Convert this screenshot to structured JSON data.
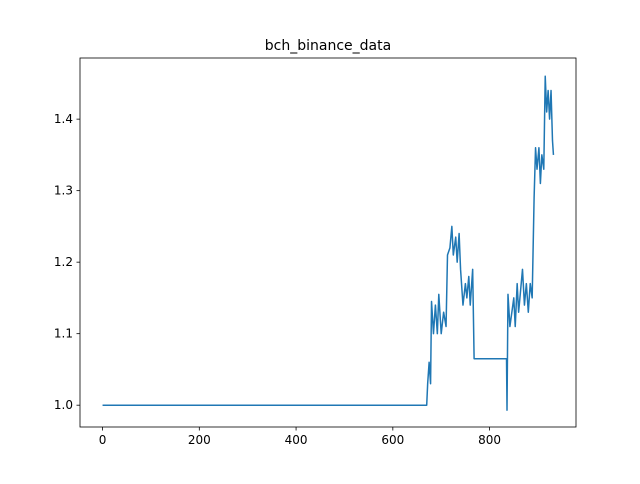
{
  "chart_data": {
    "type": "line",
    "title": "bch_binance_data",
    "x": [
      0,
      670,
      672,
      675,
      678,
      680,
      684,
      688,
      692,
      695,
      700,
      705,
      710,
      713,
      718,
      722,
      725,
      730,
      733,
      737,
      740,
      745,
      750,
      753,
      757,
      760,
      765,
      768,
      835,
      836,
      838,
      842,
      846,
      850,
      853,
      857,
      860,
      864,
      868,
      872,
      876,
      880,
      884,
      888,
      892,
      895,
      898,
      902,
      905,
      908,
      912,
      915,
      918,
      921,
      924,
      927,
      930,
      932
    ],
    "series": [
      {
        "name": "bch_binance_data",
        "color": "#1f77b4",
        "values": [
          1.0,
          1.0,
          1.03,
          1.06,
          1.03,
          1.145,
          1.1,
          1.14,
          1.1,
          1.155,
          1.1,
          1.13,
          1.11,
          1.21,
          1.22,
          1.25,
          1.21,
          1.235,
          1.2,
          1.24,
          1.19,
          1.14,
          1.17,
          1.15,
          1.18,
          1.14,
          1.19,
          1.065,
          1.065,
          0.993,
          1.155,
          1.11,
          1.13,
          1.15,
          1.11,
          1.17,
          1.13,
          1.16,
          1.19,
          1.14,
          1.17,
          1.13,
          1.17,
          1.15,
          1.29,
          1.36,
          1.33,
          1.36,
          1.31,
          1.35,
          1.33,
          1.46,
          1.41,
          1.44,
          1.4,
          1.44,
          1.37,
          1.35
        ]
      }
    ],
    "xlim": [
      -46.6,
      978.6
    ],
    "xticks": [
      0,
      200,
      400,
      600,
      800
    ],
    "ylim": [
      0.9695,
      1.4855
    ],
    "yticks": [
      {
        "value": 1,
        "label": "1.0"
      },
      1.1,
      1.2,
      1.3,
      1.4
    ],
    "grid": false
  }
}
